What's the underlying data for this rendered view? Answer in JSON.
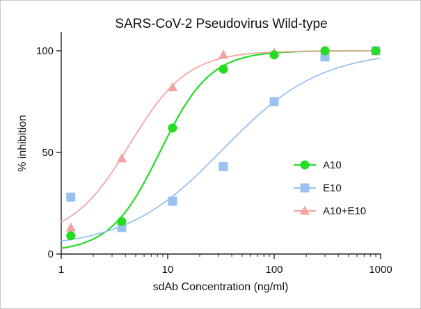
{
  "chart_data": {
    "type": "scatter",
    "title": "SARS-CoV-2 Pseudovirus Wild-type",
    "xlabel": "sdAb Concentration (ng/ml)",
    "ylabel": "% inhibition",
    "xscale": "log",
    "xlim": [
      1,
      1000
    ],
    "ylim": [
      0,
      100
    ],
    "xticks": [
      1,
      10,
      100,
      1000
    ],
    "xtick_labels": [
      "1",
      "10",
      "100",
      "1000"
    ],
    "yticks": [
      0,
      50,
      100
    ],
    "ytick_labels": [
      "0",
      "50",
      "100"
    ],
    "legend_position": "right",
    "series": [
      {
        "name": "A10",
        "color": "#22dd22",
        "marker": "circle",
        "x": [
          1.23,
          3.7,
          11.1,
          33.3,
          100,
          300,
          900
        ],
        "y": [
          9,
          16,
          62,
          91,
          98,
          100,
          100
        ],
        "fit": {
          "bottom": 1,
          "top": 100,
          "ec50": 8.5,
          "hill": 1.85
        }
      },
      {
        "name": "E10",
        "color": "#99c2f0",
        "marker": "square",
        "x": [
          1.23,
          3.7,
          11.1,
          33.3,
          100,
          300,
          900
        ],
        "y": [
          28,
          13,
          26,
          43,
          75,
          97,
          100
        ],
        "fit": {
          "bottom": 3,
          "top": 100,
          "ec50": 33,
          "hill": 0.95
        }
      },
      {
        "name": "A10+E10",
        "color": "#f4a5a3",
        "marker": "triangle",
        "x": [
          1.23,
          3.7,
          11.1,
          33.3,
          100,
          300,
          900
        ],
        "y": [
          13,
          47,
          82,
          98,
          99,
          100,
          100
        ],
        "fit": {
          "bottom": 8,
          "top": 100,
          "ec50": 4.4,
          "hill": 1.6
        }
      }
    ]
  }
}
